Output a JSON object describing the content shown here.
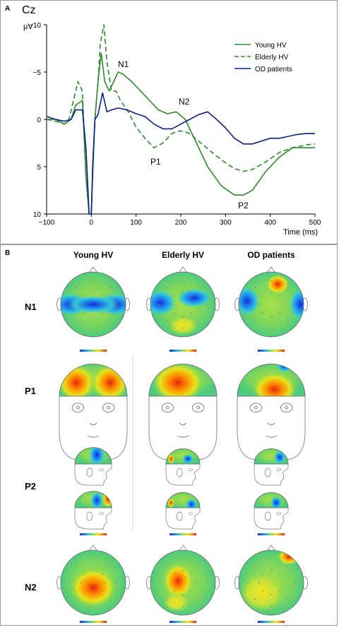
{
  "panel_a": {
    "label": "A",
    "channel": "Cz",
    "y_unit": "μV",
    "x_label": "Time (ms)",
    "peaks": [
      "N1",
      "N2",
      "P1",
      "P2"
    ]
  },
  "panel_b": {
    "label": "B",
    "columns": [
      "Young HV",
      "Elderly HV",
      "OD patients"
    ],
    "rows": [
      "N1",
      "P1",
      "P2",
      "N2"
    ]
  },
  "colors": {
    "young": "#2e8b2e",
    "elderly": "#2e8b2e",
    "od": "#0a1f8c"
  },
  "chart_data": {
    "type": "line",
    "title": "Cz",
    "xlabel": "Time (ms)",
    "ylabel": "μV",
    "xlim": [
      -100,
      500
    ],
    "ylim": [
      -10,
      10
    ],
    "y_inverted": true,
    "x_ticks": [
      -100,
      0,
      100,
      200,
      300,
      400,
      500
    ],
    "y_ticks": [
      -10,
      -5,
      0,
      5,
      10
    ],
    "legend_position": "top-right",
    "series": [
      {
        "name": "Young HV",
        "style": "solid",
        "x": [
          -100,
          -80,
          -60,
          -45,
          -35,
          -20,
          -12,
          -5,
          0,
          3,
          8,
          15,
          22,
          30,
          40,
          50,
          60,
          70,
          90,
          110,
          130,
          150,
          170,
          190,
          210,
          230,
          260,
          290,
          320,
          340,
          360,
          390,
          420,
          450,
          480,
          500
        ],
        "y": [
          0,
          0,
          0.5,
          0,
          -1.5,
          -2,
          6,
          10,
          10,
          6,
          0,
          -4,
          -7,
          -4,
          -3,
          -4,
          -5,
          -4.8,
          -4,
          -3,
          -2,
          -1,
          -0.6,
          -0.8,
          0,
          2,
          5,
          7,
          8,
          8,
          7.5,
          5.5,
          4,
          3,
          3,
          3
        ]
      },
      {
        "name": "Elderly HV",
        "style": "dashed",
        "x": [
          -100,
          -80,
          -60,
          -50,
          -40,
          -30,
          -20,
          -12,
          -5,
          0,
          3,
          8,
          15,
          20,
          28,
          35,
          45,
          55,
          65,
          80,
          100,
          120,
          140,
          160,
          180,
          200,
          220,
          240,
          270,
          300,
          320,
          340,
          360,
          390,
          420,
          450,
          480,
          500
        ],
        "y": [
          0,
          0.2,
          0.5,
          0,
          -2,
          -4,
          -3,
          6,
          10,
          10,
          5,
          0,
          -4,
          -8,
          -10,
          -6,
          -3,
          -3,
          -2,
          -1,
          0.8,
          2,
          3,
          2.5,
          1.5,
          1.2,
          1.5,
          2.3,
          3.5,
          4.6,
          5.2,
          5.5,
          5.3,
          4.5,
          3.5,
          3,
          2.7,
          2.6
        ]
      },
      {
        "name": "OD patients",
        "style": "solid",
        "x": [
          -100,
          -80,
          -60,
          -45,
          -35,
          -20,
          -12,
          -5,
          0,
          3,
          8,
          15,
          25,
          35,
          45,
          60,
          80,
          100,
          120,
          140,
          160,
          180,
          200,
          220,
          240,
          260,
          280,
          300,
          320,
          340,
          360,
          380,
          400,
          420,
          440,
          460,
          480,
          500
        ],
        "y": [
          -0.3,
          0,
          0.2,
          0,
          -1,
          -1,
          3,
          10,
          10,
          5,
          0,
          -0.5,
          -2.8,
          -0.8,
          -1,
          -1.2,
          -1,
          -0.6,
          -0.3,
          0.5,
          1,
          1,
          0.5,
          0,
          -0.5,
          -0.8,
          0,
          0.9,
          2,
          2.6,
          2.6,
          2.3,
          2,
          2,
          1.8,
          1.6,
          1.5,
          1.5
        ]
      }
    ]
  }
}
